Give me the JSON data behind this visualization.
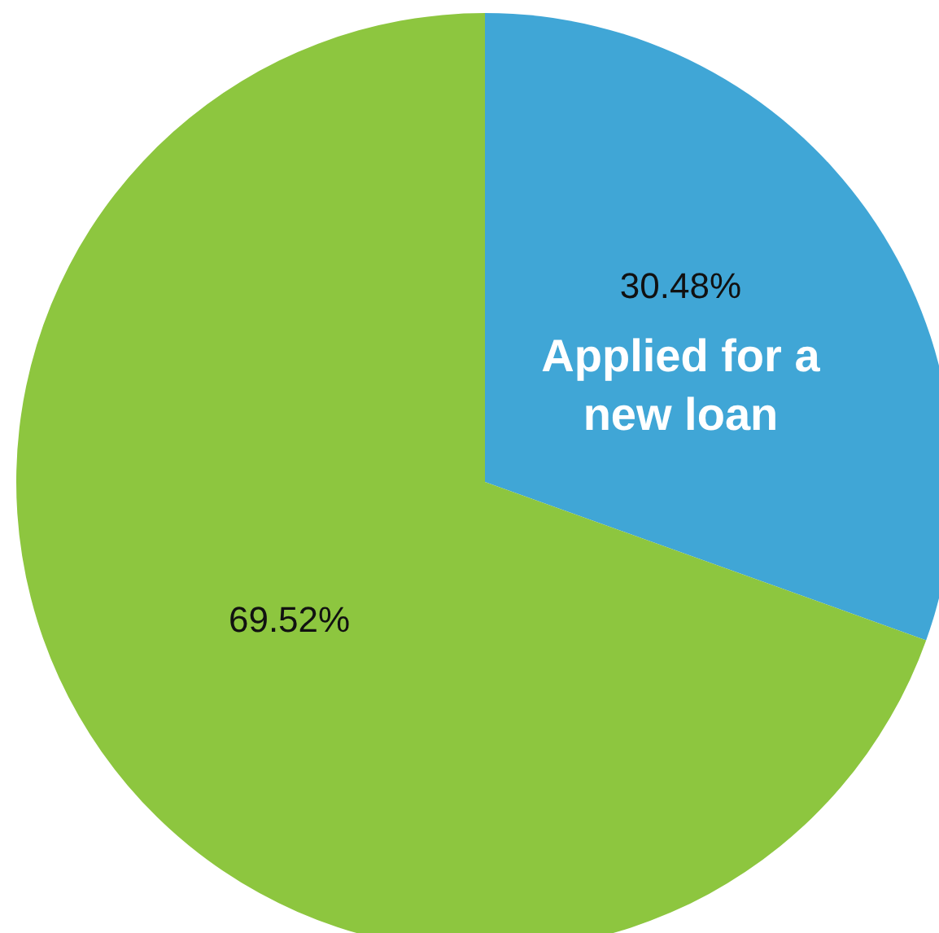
{
  "chart_data": {
    "type": "pie",
    "categories": [
      "Applied for a new loan",
      null
    ],
    "values": [
      30.48,
      69.52
    ],
    "value_labels": [
      "30.48%",
      "69.52%"
    ],
    "colors": [
      "#40a6d6",
      "#8dc63f"
    ],
    "legend": false
  }
}
